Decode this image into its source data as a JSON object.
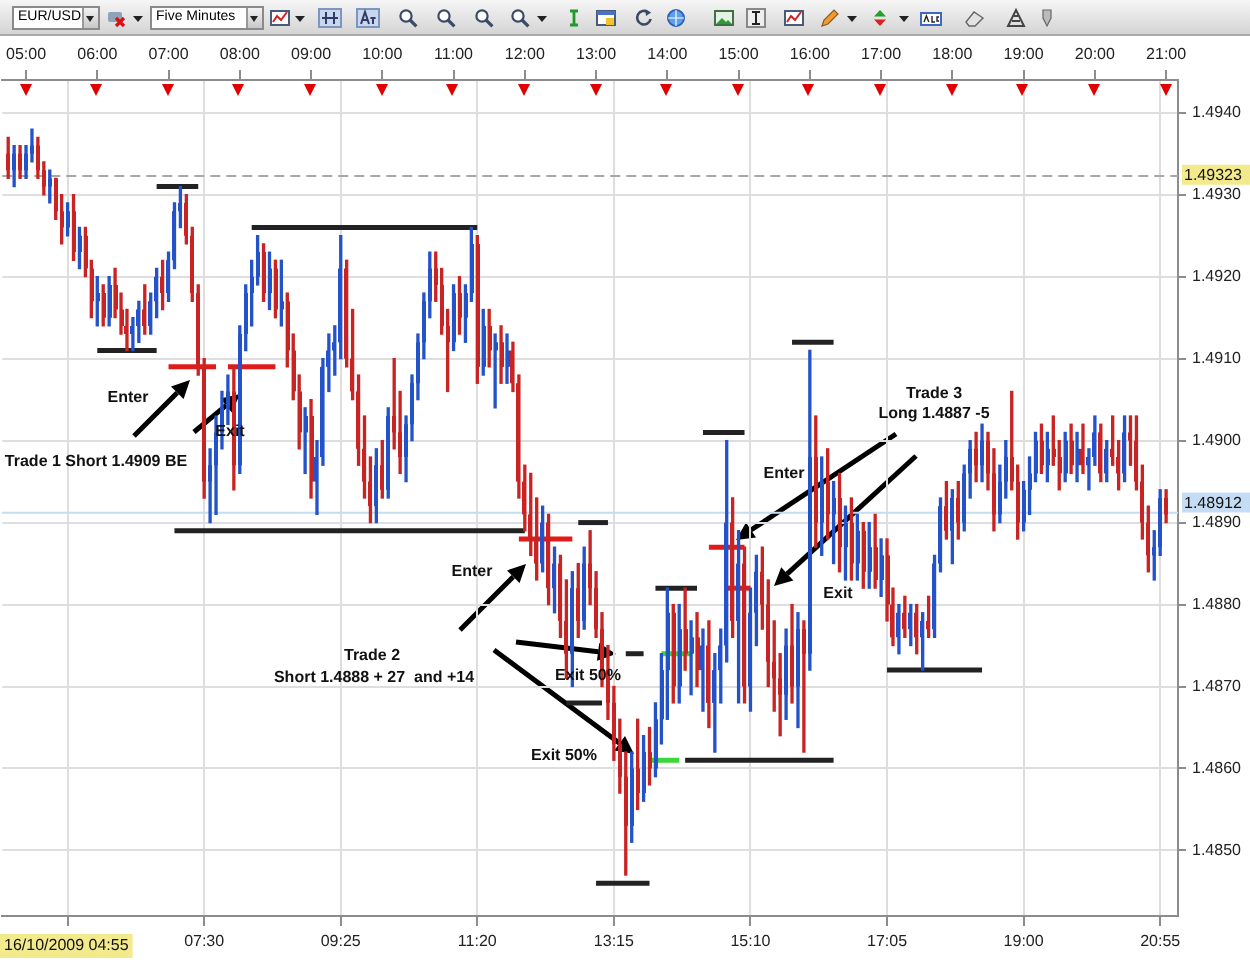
{
  "chart_data": {
    "type": "candlestick",
    "title": "EUR/USD",
    "subtitle": "Five Minutes",
    "x": [
      "2009-10-16T04:45",
      "2009-10-16T04:50",
      "2009-10-16T04:55",
      "2009-10-16T05:00",
      "2009-10-16T05:05",
      "2009-10-16T05:10",
      "2009-10-16T05:15",
      "2009-10-16T05:20",
      "2009-10-16T05:25",
      "2009-10-16T05:30",
      "2009-10-16T05:35",
      "2009-10-16T05:40",
      "2009-10-16T05:45",
      "2009-10-16T05:50",
      "2009-10-16T05:55",
      "2009-10-16T06:00",
      "2009-10-16T06:05",
      "2009-10-16T06:10",
      "2009-10-16T06:15",
      "2009-10-16T06:20",
      "2009-10-16T06:25",
      "2009-10-16T06:30",
      "2009-10-16T06:35",
      "2009-10-16T06:40",
      "2009-10-16T06:45",
      "2009-10-16T06:50",
      "2009-10-16T06:55",
      "2009-10-16T07:00",
      "2009-10-16T07:05",
      "2009-10-16T07:10",
      "2009-10-16T07:15",
      "2009-10-16T07:20",
      "2009-10-16T07:25",
      "2009-10-16T07:30",
      "2009-10-16T07:35",
      "2009-10-16T07:40",
      "2009-10-16T07:45",
      "2009-10-16T07:50",
      "2009-10-16T07:55",
      "2009-10-16T08:00",
      "2009-10-16T08:05",
      "2009-10-16T08:10",
      "2009-10-16T08:15",
      "2009-10-16T08:20",
      "2009-10-16T08:25",
      "2009-10-16T08:30",
      "2009-10-16T08:35",
      "2009-10-16T08:40",
      "2009-10-16T08:45",
      "2009-10-16T08:50",
      "2009-10-16T08:55",
      "2009-10-16T09:00",
      "2009-10-16T09:05",
      "2009-10-16T09:10",
      "2009-10-16T09:15",
      "2009-10-16T09:20",
      "2009-10-16T09:25",
      "2009-10-16T09:30",
      "2009-10-16T09:35",
      "2009-10-16T09:40",
      "2009-10-16T09:45",
      "2009-10-16T09:50",
      "2009-10-16T09:55",
      "2009-10-16T10:00",
      "2009-10-16T10:05",
      "2009-10-16T10:10",
      "2009-10-16T10:15",
      "2009-10-16T10:20",
      "2009-10-16T10:25",
      "2009-10-16T10:30",
      "2009-10-16T10:35",
      "2009-10-16T10:40",
      "2009-10-16T10:45",
      "2009-10-16T10:50",
      "2009-10-16T10:55",
      "2009-10-16T11:00",
      "2009-10-16T11:05",
      "2009-10-16T11:10",
      "2009-10-16T11:15",
      "2009-10-16T11:20",
      "2009-10-16T11:25",
      "2009-10-16T11:30",
      "2009-10-16T11:35",
      "2009-10-16T11:40",
      "2009-10-16T11:45",
      "2009-10-16T11:50",
      "2009-10-16T11:55",
      "2009-10-16T12:00",
      "2009-10-16T12:05",
      "2009-10-16T12:10",
      "2009-10-16T12:15",
      "2009-10-16T12:20",
      "2009-10-16T12:25",
      "2009-10-16T12:30",
      "2009-10-16T12:35",
      "2009-10-16T12:40",
      "2009-10-16T12:45",
      "2009-10-16T12:50",
      "2009-10-16T12:55",
      "2009-10-16T13:00",
      "2009-10-16T13:05",
      "2009-10-16T13:10",
      "2009-10-16T13:15",
      "2009-10-16T13:20",
      "2009-10-16T13:25",
      "2009-10-16T13:30",
      "2009-10-16T13:35",
      "2009-10-16T13:40",
      "2009-10-16T13:45",
      "2009-10-16T13:50",
      "2009-10-16T13:55",
      "2009-10-16T14:00",
      "2009-10-16T14:05",
      "2009-10-16T14:10",
      "2009-10-16T14:15",
      "2009-10-16T14:20",
      "2009-10-16T14:25",
      "2009-10-16T14:30",
      "2009-10-16T14:35",
      "2009-10-16T14:40",
      "2009-10-16T14:45",
      "2009-10-16T14:50",
      "2009-10-16T14:55",
      "2009-10-16T15:00",
      "2009-10-16T15:05",
      "2009-10-16T15:10",
      "2009-10-16T15:15",
      "2009-10-16T15:20",
      "2009-10-16T15:25",
      "2009-10-16T15:30",
      "2009-10-16T15:35",
      "2009-10-16T15:40",
      "2009-10-16T15:45",
      "2009-10-16T15:50",
      "2009-10-16T15:55",
      "2009-10-16T16:00",
      "2009-10-16T16:05",
      "2009-10-16T16:10",
      "2009-10-16T16:15",
      "2009-10-16T16:20",
      "2009-10-16T16:25",
      "2009-10-16T16:30",
      "2009-10-16T16:35",
      "2009-10-16T16:40",
      "2009-10-16T16:45",
      "2009-10-16T16:50",
      "2009-10-16T16:55",
      "2009-10-16T17:00",
      "2009-10-16T17:05",
      "2009-10-16T17:10",
      "2009-10-16T17:15",
      "2009-10-16T17:20",
      "2009-10-16T17:25",
      "2009-10-16T17:30",
      "2009-10-16T17:35",
      "2009-10-16T17:40",
      "2009-10-16T17:45",
      "2009-10-16T17:50",
      "2009-10-16T17:55",
      "2009-10-16T18:00",
      "2009-10-16T18:05",
      "2009-10-16T18:10",
      "2009-10-16T18:15",
      "2009-10-16T18:20",
      "2009-10-16T18:25",
      "2009-10-16T18:30",
      "2009-10-16T18:35",
      "2009-10-16T18:40",
      "2009-10-16T18:45",
      "2009-10-16T18:50",
      "2009-10-16T18:55",
      "2009-10-16T19:00",
      "2009-10-16T19:05",
      "2009-10-16T19:10",
      "2009-10-16T19:15",
      "2009-10-16T19:20",
      "2009-10-16T19:25",
      "2009-10-16T19:30",
      "2009-10-16T19:35",
      "2009-10-16T19:40",
      "2009-10-16T19:45",
      "2009-10-16T19:50",
      "2009-10-16T19:55",
      "2009-10-16T20:00",
      "2009-10-16T20:05",
      "2009-10-16T20:10",
      "2009-10-16T20:15",
      "2009-10-16T20:20",
      "2009-10-16T20:25",
      "2009-10-16T20:30",
      "2009-10-16T20:35",
      "2009-10-16T20:40",
      "2009-10-16T20:45",
      "2009-10-16T20:50",
      "2009-10-16T20:55",
      "2009-10-16T21:00"
    ],
    "ohlc": [
      [
        1.4935,
        1.4937,
        1.4932,
        1.4933
      ],
      [
        1.4933,
        1.4936,
        1.4931,
        1.4935
      ],
      [
        1.4935,
        1.4936,
        1.4932,
        1.4933
      ],
      [
        1.4933,
        1.4936,
        1.4932,
        1.4935
      ],
      [
        1.4935,
        1.4938,
        1.4934,
        1.4936
      ],
      [
        1.4936,
        1.4937,
        1.4932,
        1.4933
      ],
      [
        1.4933,
        1.4934,
        1.493,
        1.4931
      ],
      [
        1.4931,
        1.4933,
        1.4929,
        1.4932
      ],
      [
        1.4932,
        1.4932,
        1.4927,
        1.4928
      ],
      [
        1.4928,
        1.493,
        1.4924,
        1.4926
      ],
      [
        1.4926,
        1.4929,
        1.4925,
        1.4928
      ],
      [
        1.4928,
        1.493,
        1.4922,
        1.4923
      ],
      [
        1.4923,
        1.4926,
        1.4921,
        1.4925
      ],
      [
        1.4925,
        1.4926,
        1.492,
        1.4921
      ],
      [
        1.4921,
        1.4922,
        1.4915,
        1.4917
      ],
      [
        1.4917,
        1.492,
        1.4914,
        1.4918
      ],
      [
        1.4918,
        1.4919,
        1.4914,
        1.4915
      ],
      [
        1.4915,
        1.492,
        1.4914,
        1.4919
      ],
      [
        1.4919,
        1.4921,
        1.4915,
        1.4916
      ],
      [
        1.4916,
        1.4918,
        1.4913,
        1.4914
      ],
      [
        1.4914,
        1.4916,
        1.4911,
        1.4913
      ],
      [
        1.4913,
        1.4915,
        1.4911,
        1.4914
      ],
      [
        1.4914,
        1.4917,
        1.4912,
        1.4916
      ],
      [
        1.4916,
        1.4919,
        1.4913,
        1.4914
      ],
      [
        1.4914,
        1.4918,
        1.4913,
        1.4917
      ],
      [
        1.4917,
        1.4921,
        1.4915,
        1.492
      ],
      [
        1.492,
        1.4922,
        1.4916,
        1.4918
      ],
      [
        1.4918,
        1.4923,
        1.4917,
        1.4922
      ],
      [
        1.4922,
        1.4929,
        1.4921,
        1.4928
      ],
      [
        1.4928,
        1.4931,
        1.4926,
        1.4929
      ],
      [
        1.4929,
        1.493,
        1.4924,
        1.4925
      ],
      [
        1.4925,
        1.4926,
        1.4917,
        1.4918
      ],
      [
        1.4918,
        1.4919,
        1.4908,
        1.4909
      ],
      [
        1.4909,
        1.491,
        1.4893,
        1.4895
      ],
      [
        1.4895,
        1.4899,
        1.489,
        1.4897
      ],
      [
        1.4897,
        1.4903,
        1.4891,
        1.4901
      ],
      [
        1.4901,
        1.4906,
        1.4899,
        1.4904
      ],
      [
        1.4904,
        1.4908,
        1.4902,
        1.4906
      ],
      [
        1.4906,
        1.4909,
        1.4894,
        1.4897
      ],
      [
        1.4897,
        1.4914,
        1.4896,
        1.4913
      ],
      [
        1.4913,
        1.4919,
        1.4911,
        1.4918
      ],
      [
        1.4918,
        1.4922,
        1.4914,
        1.492
      ],
      [
        1.492,
        1.4925,
        1.4919,
        1.4923
      ],
      [
        1.4923,
        1.4924,
        1.4917,
        1.4918
      ],
      [
        1.4918,
        1.4923,
        1.4916,
        1.4921
      ],
      [
        1.4921,
        1.4922,
        1.4915,
        1.4916
      ],
      [
        1.4916,
        1.4922,
        1.4914,
        1.4917
      ],
      [
        1.4917,
        1.4918,
        1.4909,
        1.4911
      ],
      [
        1.4911,
        1.4913,
        1.4905,
        1.4906
      ],
      [
        1.4906,
        1.4908,
        1.4899,
        1.4901
      ],
      [
        1.4901,
        1.4904,
        1.4896,
        1.4903
      ],
      [
        1.4903,
        1.4905,
        1.4893,
        1.4895
      ],
      [
        1.4895,
        1.49,
        1.4891,
        1.4898
      ],
      [
        1.4898,
        1.491,
        1.4897,
        1.4909
      ],
      [
        1.4909,
        1.4913,
        1.4906,
        1.4911
      ],
      [
        1.4911,
        1.4914,
        1.4908,
        1.4912
      ],
      [
        1.4912,
        1.4925,
        1.491,
        1.4921
      ],
      [
        1.4921,
        1.4922,
        1.4909,
        1.491
      ],
      [
        1.491,
        1.4916,
        1.4905,
        1.4906
      ],
      [
        1.4906,
        1.4908,
        1.4897,
        1.4899
      ],
      [
        1.4899,
        1.4903,
        1.4893,
        1.4895
      ],
      [
        1.4895,
        1.4898,
        1.489,
        1.4892
      ],
      [
        1.4892,
        1.4899,
        1.489,
        1.4897
      ],
      [
        1.4897,
        1.49,
        1.4893,
        1.4894
      ],
      [
        1.4894,
        1.4904,
        1.4893,
        1.4903
      ],
      [
        1.4903,
        1.491,
        1.4899,
        1.4901
      ],
      [
        1.4901,
        1.4906,
        1.4896,
        1.4898
      ],
      [
        1.4898,
        1.4903,
        1.4895,
        1.4902
      ],
      [
        1.4902,
        1.4908,
        1.49,
        1.4907
      ],
      [
        1.4907,
        1.4913,
        1.4905,
        1.4912
      ],
      [
        1.4912,
        1.4918,
        1.491,
        1.4917
      ],
      [
        1.4917,
        1.4923,
        1.4915,
        1.4921
      ],
      [
        1.4921,
        1.4923,
        1.4917,
        1.4919
      ],
      [
        1.4919,
        1.4921,
        1.4913,
        1.4914
      ],
      [
        1.4914,
        1.4916,
        1.4906,
        1.4912
      ],
      [
        1.4912,
        1.4919,
        1.4911,
        1.4918
      ],
      [
        1.4918,
        1.492,
        1.4913,
        1.4915
      ],
      [
        1.4915,
        1.4919,
        1.4912,
        1.4918
      ],
      [
        1.4918,
        1.4926,
        1.4917,
        1.4924
      ],
      [
        1.4924,
        1.4925,
        1.4907,
        1.4909
      ],
      [
        1.4909,
        1.4916,
        1.4908,
        1.4914
      ],
      [
        1.4914,
        1.4916,
        1.4909,
        1.4911
      ],
      [
        1.4911,
        1.4913,
        1.4904,
        1.4912
      ],
      [
        1.4912,
        1.4914,
        1.4907,
        1.4909
      ],
      [
        1.4909,
        1.4913,
        1.4907,
        1.4911
      ],
      [
        1.4911,
        1.4912,
        1.4906,
        1.4907
      ],
      [
        1.4907,
        1.4908,
        1.4893,
        1.4895
      ],
      [
        1.4895,
        1.4897,
        1.4889,
        1.4891
      ],
      [
        1.4891,
        1.4896,
        1.4886,
        1.4888
      ],
      [
        1.4888,
        1.4893,
        1.4883,
        1.4885
      ],
      [
        1.4885,
        1.4892,
        1.4884,
        1.489
      ],
      [
        1.489,
        1.4891,
        1.488,
        1.4882
      ],
      [
        1.4882,
        1.4887,
        1.4879,
        1.4885
      ],
      [
        1.4885,
        1.4886,
        1.4876,
        1.4878
      ],
      [
        1.4878,
        1.4883,
        1.4871,
        1.4874
      ],
      [
        1.4874,
        1.4884,
        1.487,
        1.4882
      ],
      [
        1.4882,
        1.4885,
        1.4876,
        1.4878
      ],
      [
        1.4878,
        1.4887,
        1.4877,
        1.4885
      ],
      [
        1.4885,
        1.4889,
        1.488,
        1.4882
      ],
      [
        1.4882,
        1.4884,
        1.4876,
        1.4877
      ],
      [
        1.4877,
        1.4879,
        1.487,
        1.4872
      ],
      [
        1.4872,
        1.4875,
        1.4866,
        1.4868
      ],
      [
        1.4868,
        1.487,
        1.4861,
        1.4863
      ],
      [
        1.4863,
        1.4866,
        1.4857,
        1.4859
      ],
      [
        1.4859,
        1.4862,
        1.4847,
        1.4853
      ],
      [
        1.4853,
        1.4862,
        1.4851,
        1.486
      ],
      [
        1.486,
        1.4866,
        1.4855,
        1.4857
      ],
      [
        1.4857,
        1.4864,
        1.4856,
        1.4862
      ],
      [
        1.4862,
        1.4865,
        1.4858,
        1.486
      ],
      [
        1.486,
        1.4868,
        1.4859,
        1.4866
      ],
      [
        1.4866,
        1.4874,
        1.4863,
        1.4872
      ],
      [
        1.4872,
        1.4882,
        1.4866,
        1.4879
      ],
      [
        1.4879,
        1.488,
        1.4868,
        1.487
      ],
      [
        1.487,
        1.488,
        1.4868,
        1.4877
      ],
      [
        1.4877,
        1.4882,
        1.4872,
        1.4874
      ],
      [
        1.4874,
        1.4878,
        1.4869,
        1.4876
      ],
      [
        1.4876,
        1.4879,
        1.487,
        1.4872
      ],
      [
        1.4872,
        1.4877,
        1.4867,
        1.4875
      ],
      [
        1.4875,
        1.4878,
        1.4865,
        1.4868
      ],
      [
        1.4868,
        1.4874,
        1.4862,
        1.4872
      ],
      [
        1.4872,
        1.4877,
        1.4868,
        1.4875
      ],
      [
        1.4875,
        1.49,
        1.4873,
        1.489
      ],
      [
        1.489,
        1.4893,
        1.4876,
        1.4878
      ],
      [
        1.4878,
        1.4889,
        1.4868,
        1.4885
      ],
      [
        1.4885,
        1.4887,
        1.4868,
        1.487
      ],
      [
        1.487,
        1.4882,
        1.4867,
        1.4879
      ],
      [
        1.4879,
        1.4886,
        1.4875,
        1.4884
      ],
      [
        1.4884,
        1.4887,
        1.4877,
        1.488
      ],
      [
        1.488,
        1.4883,
        1.487,
        1.4873
      ],
      [
        1.4873,
        1.4878,
        1.4867,
        1.4871
      ],
      [
        1.4871,
        1.4874,
        1.4864,
        1.4869
      ],
      [
        1.4869,
        1.4877,
        1.4866,
        1.4875
      ],
      [
        1.4875,
        1.488,
        1.4868,
        1.487
      ],
      [
        1.487,
        1.4879,
        1.4865,
        1.4877
      ],
      [
        1.4877,
        1.4878,
        1.4862,
        1.4874
      ],
      [
        1.4874,
        1.4911,
        1.4872,
        1.4898
      ],
      [
        1.4898,
        1.4903,
        1.4887,
        1.489
      ],
      [
        1.489,
        1.4898,
        1.4886,
        1.4895
      ],
      [
        1.4895,
        1.4899,
        1.4888,
        1.4891
      ],
      [
        1.4891,
        1.4895,
        1.4885,
        1.4893
      ],
      [
        1.4893,
        1.4896,
        1.4884,
        1.4887
      ],
      [
        1.4887,
        1.4892,
        1.4883,
        1.489
      ],
      [
        1.489,
        1.4893,
        1.4883,
        1.4885
      ],
      [
        1.4885,
        1.4891,
        1.4883,
        1.4889
      ],
      [
        1.4889,
        1.489,
        1.4882,
        1.4884
      ],
      [
        1.4884,
        1.489,
        1.4882,
        1.4887
      ],
      [
        1.4887,
        1.4891,
        1.4882,
        1.4883
      ],
      [
        1.4883,
        1.4888,
        1.4881,
        1.4886
      ],
      [
        1.4886,
        1.4888,
        1.4878,
        1.488
      ],
      [
        1.488,
        1.4882,
        1.4875,
        1.4876
      ],
      [
        1.4876,
        1.488,
        1.4874,
        1.4879
      ],
      [
        1.4879,
        1.4881,
        1.4876,
        1.4877
      ],
      [
        1.4877,
        1.488,
        1.4875,
        1.4879
      ],
      [
        1.4879,
        1.488,
        1.4874,
        1.4876
      ],
      [
        1.4876,
        1.4879,
        1.4872,
        1.4878
      ],
      [
        1.4878,
        1.4881,
        1.4876,
        1.4877
      ],
      [
        1.4877,
        1.4886,
        1.4876,
        1.4885
      ],
      [
        1.4885,
        1.4893,
        1.4884,
        1.4892
      ],
      [
        1.4892,
        1.4895,
        1.4888,
        1.4889
      ],
      [
        1.4889,
        1.4894,
        1.4885,
        1.4893
      ],
      [
        1.4893,
        1.4895,
        1.4888,
        1.489
      ],
      [
        1.489,
        1.4897,
        1.4889,
        1.4896
      ],
      [
        1.4896,
        1.49,
        1.4893,
        1.4899
      ],
      [
        1.4899,
        1.4901,
        1.4895,
        1.4897
      ],
      [
        1.4897,
        1.4902,
        1.4895,
        1.49
      ],
      [
        1.49,
        1.4901,
        1.4894,
        1.4896
      ],
      [
        1.4896,
        1.4899,
        1.4889,
        1.4891
      ],
      [
        1.4891,
        1.4897,
        1.489,
        1.4895
      ],
      [
        1.4895,
        1.49,
        1.4893,
        1.4898
      ],
      [
        1.4898,
        1.4906,
        1.4894,
        1.4895
      ],
      [
        1.4895,
        1.4897,
        1.4888,
        1.489
      ],
      [
        1.489,
        1.4895,
        1.4889,
        1.4894
      ],
      [
        1.4894,
        1.4898,
        1.4891,
        1.4896
      ],
      [
        1.4896,
        1.4901,
        1.4895,
        1.49
      ],
      [
        1.49,
        1.4902,
        1.4896,
        1.4897
      ],
      [
        1.4897,
        1.4901,
        1.4895,
        1.4899
      ],
      [
        1.4899,
        1.4903,
        1.4897,
        1.4898
      ],
      [
        1.4898,
        1.49,
        1.4894,
        1.4896
      ],
      [
        1.4896,
        1.4901,
        1.4895,
        1.49
      ],
      [
        1.49,
        1.4902,
        1.4896,
        1.4897
      ],
      [
        1.4897,
        1.4901,
        1.4895,
        1.4899
      ],
      [
        1.4899,
        1.4902,
        1.4896,
        1.4897
      ],
      [
        1.4897,
        1.4899,
        1.4894,
        1.4898
      ],
      [
        1.4898,
        1.4903,
        1.4897,
        1.4901
      ],
      [
        1.4901,
        1.4902,
        1.4895,
        1.4896
      ],
      [
        1.4896,
        1.49,
        1.4895,
        1.4899
      ],
      [
        1.4899,
        1.4903,
        1.4897,
        1.4898
      ],
      [
        1.4898,
        1.49,
        1.4894,
        1.4896
      ],
      [
        1.4896,
        1.4903,
        1.4895,
        1.4901
      ],
      [
        1.4901,
        1.4903,
        1.4897,
        1.49
      ],
      [
        1.49,
        1.4903,
        1.4894,
        1.4895
      ],
      [
        1.4895,
        1.4897,
        1.4888,
        1.489
      ],
      [
        1.489,
        1.4892,
        1.4884,
        1.4886
      ],
      [
        1.4886,
        1.4889,
        1.4883,
        1.4887
      ],
      [
        1.4887,
        1.4894,
        1.4886,
        1.4893
      ],
      [
        1.4893,
        1.4894,
        1.489,
        1.4891
      ]
    ],
    "colors": [
      "#c92323",
      "#2352c9",
      "#c92323",
      "#2352c9",
      "#2352c9",
      "#c92323",
      "#c92323",
      "#2352c9",
      "#c92323",
      "#c92323",
      "#2352c9",
      "#c92323",
      "#2352c9",
      "#c92323",
      "#c92323",
      "#2352c9",
      "#c92323",
      "#2352c9",
      "#c92323",
      "#c92323",
      "#c92323",
      "#2352c9",
      "#2352c9",
      "#c92323",
      "#2352c9",
      "#2352c9",
      "#c92323",
      "#2352c9",
      "#2352c9",
      "#2352c9",
      "#c92323",
      "#c92323",
      "#c92323",
      "#c92323",
      "#2352c9",
      "#2352c9",
      "#2352c9",
      "#2352c9",
      "#c92323",
      "#2352c9",
      "#2352c9",
      "#2352c9",
      "#2352c9",
      "#c92323",
      "#2352c9",
      "#c92323",
      "#2352c9",
      "#c92323",
      "#c92323",
      "#c92323",
      "#2352c9",
      "#c92323",
      "#2352c9",
      "#2352c9",
      "#2352c9",
      "#2352c9",
      "#2352c9",
      "#c92323",
      "#c92323",
      "#c92323",
      "#c92323",
      "#c92323",
      "#2352c9",
      "#c92323",
      "#2352c9",
      "#c92323",
      "#c92323",
      "#2352c9",
      "#2352c9",
      "#2352c9",
      "#2352c9",
      "#2352c9",
      "#c92323",
      "#c92323",
      "#c92323",
      "#2352c9",
      "#c92323",
      "#2352c9",
      "#2352c9",
      "#c92323",
      "#2352c9",
      "#c92323",
      "#2352c9",
      "#c92323",
      "#2352c9",
      "#c92323",
      "#c92323",
      "#c92323",
      "#c92323",
      "#c92323",
      "#2352c9",
      "#c92323",
      "#2352c9",
      "#c92323",
      "#c92323",
      "#2352c9",
      "#c92323",
      "#2352c9",
      "#c92323",
      "#c92323",
      "#c92323",
      "#c92323",
      "#c92323",
      "#c92323",
      "#c92323",
      "#2352c9",
      "#c92323",
      "#2352c9",
      "#c92323",
      "#2352c9",
      "#2352c9",
      "#2352c9",
      "#c92323",
      "#2352c9",
      "#c92323",
      "#2352c9",
      "#c92323",
      "#2352c9",
      "#c92323",
      "#2352c9",
      "#2352c9",
      "#2352c9",
      "#c92323",
      "#2352c9",
      "#c92323",
      "#2352c9",
      "#2352c9",
      "#c92323",
      "#c92323",
      "#c92323",
      "#c92323",
      "#2352c9",
      "#c92323",
      "#2352c9",
      "#c92323",
      "#2352c9",
      "#c92323",
      "#2352c9",
      "#c92323",
      "#2352c9",
      "#c92323",
      "#2352c9",
      "#c92323",
      "#2352c9",
      "#c92323",
      "#2352c9",
      "#c92323",
      "#2352c9",
      "#c92323",
      "#c92323",
      "#2352c9",
      "#c92323",
      "#2352c9",
      "#c92323",
      "#2352c9",
      "#c92323",
      "#2352c9",
      "#2352c9",
      "#c92323",
      "#2352c9",
      "#c92323",
      "#2352c9",
      "#2352c9",
      "#c92323",
      "#2352c9",
      "#c92323",
      "#c92323",
      "#2352c9",
      "#2352c9",
      "#c92323",
      "#c92323",
      "#2352c9",
      "#2352c9",
      "#2352c9",
      "#c92323",
      "#2352c9",
      "#c92323",
      "#c92323",
      "#2352c9",
      "#c92323",
      "#2352c9",
      "#c92323",
      "#2352c9",
      "#2352c9",
      "#c92323",
      "#2352c9",
      "#c92323",
      "#c92323",
      "#2352c9",
      "#c92323",
      "#c92323",
      "#c92323",
      "#c92323",
      "#2352c9",
      "#2352c9",
      "#c92323"
    ],
    "series": [
      {
        "type": "line",
        "x": [
          "2009-10-16T06:00",
          "2009-10-16T06:50"
        ],
        "values": [
          1.4911,
          1.4911
        ],
        "color": "#222222"
      },
      {
        "type": "line",
        "x": [
          "2009-10-16T06:50",
          "2009-10-16T07:25"
        ],
        "values": [
          1.4931,
          1.4931
        ],
        "color": "#222222"
      },
      {
        "type": "line",
        "x": [
          "2009-10-16T08:10",
          "2009-10-16T11:20"
        ],
        "values": [
          1.4926,
          1.4926
        ],
        "color": "#222222"
      },
      {
        "type": "line",
        "x": [
          "2009-10-16T07:05",
          "2009-10-16T12:00"
        ],
        "values": [
          1.4889,
          1.4889
        ],
        "color": "#222222"
      },
      {
        "type": "line",
        "x": [
          "2009-10-16T12:45",
          "2009-10-16T13:10"
        ],
        "values": [
          1.489,
          1.489
        ],
        "color": "#222222"
      },
      {
        "type": "line",
        "x": [
          "2009-10-16T12:35",
          "2009-10-16T13:05"
        ],
        "values": [
          1.4868,
          1.4868
        ],
        "color": "#222222"
      },
      {
        "type": "line",
        "x": [
          "2009-10-16T13:00",
          "2009-10-16T13:45"
        ],
        "values": [
          1.4846,
          1.4846
        ],
        "color": "#222222"
      },
      {
        "type": "line",
        "x": [
          "2009-10-16T13:25",
          "2009-10-16T13:40"
        ],
        "values": [
          1.4874,
          1.4874
        ],
        "color": "#222222"
      },
      {
        "type": "line",
        "x": [
          "2009-10-16T13:50",
          "2009-10-16T14:25"
        ],
        "values": [
          1.4882,
          1.4882
        ],
        "color": "#222222"
      },
      {
        "type": "line",
        "x": [
          "2009-10-16T14:30",
          "2009-10-16T15:05"
        ],
        "values": [
          1.4901,
          1.4901
        ],
        "color": "#222222"
      },
      {
        "type": "line",
        "x": [
          "2009-10-16T14:15",
          "2009-10-16T16:20"
        ],
        "values": [
          1.4861,
          1.4861
        ],
        "color": "#222222"
      },
      {
        "type": "line",
        "x": [
          "2009-10-16T15:45",
          "2009-10-16T16:20"
        ],
        "values": [
          1.4912,
          1.4912
        ],
        "color": "#222222"
      },
      {
        "type": "line",
        "x": [
          "2009-10-16T17:05",
          "2009-10-16T18:25"
        ],
        "values": [
          1.4872,
          1.4872
        ],
        "color": "#222222"
      },
      {
        "type": "line",
        "x": [
          "2009-10-16T07:00",
          "2009-10-16T07:40"
        ],
        "values": [
          1.4909,
          1.4909
        ],
        "color": "#e01b1b"
      },
      {
        "type": "line",
        "x": [
          "2009-10-16T07:50",
          "2009-10-16T08:30"
        ],
        "values": [
          1.4909,
          1.4909
        ],
        "color": "#e01b1b"
      },
      {
        "type": "line",
        "x": [
          "2009-10-16T11:55",
          "2009-10-16T12:40"
        ],
        "values": [
          1.4888,
          1.4888
        ],
        "color": "#e01b1b"
      },
      {
        "type": "line",
        "x": [
          "2009-10-16T14:35",
          "2009-10-16T15:05"
        ],
        "values": [
          1.4887,
          1.4887
        ],
        "color": "#e01b1b"
      },
      {
        "type": "line",
        "x": [
          "2009-10-16T14:50",
          "2009-10-16T15:10"
        ],
        "values": [
          1.4882,
          1.4882
        ],
        "color": "#e01b1b"
      },
      {
        "type": "line",
        "x": [
          "2009-10-16T13:55",
          "2009-10-16T14:20"
        ],
        "values": [
          1.4874,
          1.4874
        ],
        "color": "#3ad83a"
      },
      {
        "type": "line",
        "x": [
          "2009-10-16T13:45",
          "2009-10-16T14:10"
        ],
        "values": [
          1.4861,
          1.4861
        ],
        "color": "#3ad83a"
      }
    ],
    "marker": "none",
    "xlim": [
      "2009-10-16T04:40",
      "2009-10-16T21:10"
    ],
    "xticks": [
      {
        "value": "2009-10-16T05:35",
        "label": null
      },
      {
        "value": "2009-10-16T07:30",
        "label": "07:30"
      },
      {
        "value": "2009-10-16T09:25",
        "label": "09:25"
      },
      {
        "value": "2009-10-16T11:20",
        "label": "11:20"
      },
      {
        "value": "2009-10-16T13:15",
        "label": "13:15"
      },
      {
        "value": "2009-10-16T15:10",
        "label": "15:10"
      },
      {
        "value": "2009-10-16T17:05",
        "label": "17:05"
      },
      {
        "value": "2009-10-16T19:00",
        "label": "19:00"
      },
      {
        "value": "2009-10-16T20:55",
        "label": "20:55"
      }
    ],
    "x2lim": [
      "2009-10-16T04:40",
      "2009-10-16T21:10"
    ],
    "x2ticks": [
      {
        "value": "2009-10-16T05:00",
        "label": "05:00"
      },
      {
        "value": "2009-10-16T06:00",
        "label": "06:00"
      },
      {
        "value": "2009-10-16T07:00",
        "label": "07:00"
      },
      {
        "value": "2009-10-16T08:00",
        "label": "08:00"
      },
      {
        "value": "2009-10-16T09:00",
        "label": "09:00"
      },
      {
        "value": "2009-10-16T10:00",
        "label": "10:00"
      },
      {
        "value": "2009-10-16T11:00",
        "label": "11:00"
      },
      {
        "value": "2009-10-16T12:00",
        "label": "12:00"
      },
      {
        "value": "2009-10-16T13:00",
        "label": "13:00"
      },
      {
        "value": "2009-10-16T14:00",
        "label": "14:00"
      },
      {
        "value": "2009-10-16T15:00",
        "label": "15:00"
      },
      {
        "value": "2009-10-16T16:00",
        "label": "16:00"
      },
      {
        "value": "2009-10-16T17:00",
        "label": "17:00"
      },
      {
        "value": "2009-10-16T18:00",
        "label": "18:00"
      },
      {
        "value": "2009-10-16T19:00",
        "label": "19:00"
      },
      {
        "value": "2009-10-16T20:00",
        "label": "20:00"
      },
      {
        "value": "2009-10-16T21:00",
        "label": "21:00"
      }
    ],
    "ylim": [
      1.4842,
      1.4944
    ],
    "yticks": [
      {
        "value": 1.485,
        "label": "1.4850"
      },
      {
        "value": 1.486,
        "label": "1.4860"
      },
      {
        "value": 1.487,
        "label": "1.4870"
      },
      {
        "value": 1.488,
        "label": "1.4880"
      },
      {
        "value": 1.489,
        "label": "1.4890"
      },
      {
        "value": 1.49,
        "label": "1.4900"
      },
      {
        "value": 1.491,
        "label": "1.4910"
      },
      {
        "value": 1.492,
        "label": "1.4920"
      },
      {
        "value": 1.493,
        "label": "1.4930"
      },
      {
        "value": 1.494,
        "label": "1.4940"
      }
    ],
    "grid": true,
    "ref_lines": [
      {
        "axis": "y",
        "value": 1.49323,
        "label": "1.49323",
        "color": "#a8a8a8",
        "line_style": "dashed"
      },
      {
        "axis": "y",
        "value": 1.48912,
        "label": "1.48912",
        "color": "#c4dcf4",
        "line_style": "solid"
      }
    ],
    "annotations": [
      "Trade 1 Short 1.4909 BE",
      "Enter",
      "Exit",
      "Trade 2",
      "Short 1.4888 + 27  and +14",
      "Enter",
      "Exit 50%",
      "Exit 50%",
      "Enter",
      "Trade 3",
      "Long 1.4887 -5",
      "Exit",
      "16/10/2009 04:55"
    ]
  }
}
